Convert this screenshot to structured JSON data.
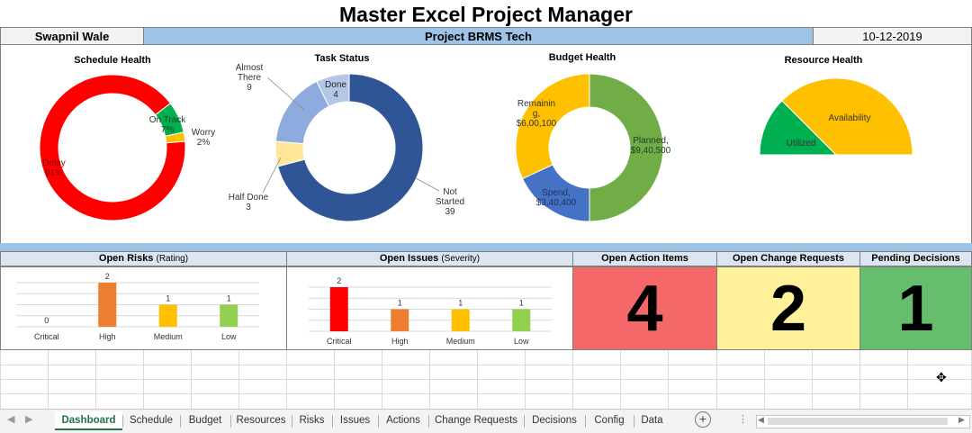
{
  "title": "Master Excel Project Manager",
  "header": {
    "owner": "Swapnil Wale",
    "project": "Project BRMS Tech",
    "date": "10-12-2019"
  },
  "charts": {
    "schedule_title": "Schedule Health",
    "task_title": "Task Status",
    "budget_title": "Budget Health",
    "resource_title": "Resource Health"
  },
  "chart_data": [
    {
      "type": "pie",
      "title": "Schedule Health",
      "labels": [
        "Delay",
        "On Track",
        "Worry"
      ],
      "values": [
        91,
        7,
        2
      ],
      "display": {
        "delay_name": "Delay",
        "delay_pct": "91%",
        "ontrack_name": "On Track",
        "ontrack_pct": "7%",
        "worry_name": "Worry",
        "worry_pct": "2%"
      },
      "colors": [
        "#ff0000",
        "#00b050",
        "#ffc000"
      ]
    },
    {
      "type": "pie",
      "title": "Task Status",
      "labels": [
        "Not Started",
        "Half Done",
        "Almost There",
        "Done"
      ],
      "values": [
        39,
        3,
        9,
        4
      ],
      "display": {
        "ns_name1": "Not",
        "ns_name2": "Started",
        "ns_val": "39",
        "hd_name": "Half Done",
        "hd_val": "3",
        "at_name1": "Almost",
        "at_name2": "There",
        "at_val": "9",
        "done_name": "Done",
        "done_val": "4"
      },
      "colors": [
        "#2f5597",
        "#ffe699",
        "#8faadc",
        "#b4c7e7"
      ]
    },
    {
      "type": "pie",
      "title": "Budget Health",
      "labels": [
        "Planned",
        "Spend",
        "Remaining"
      ],
      "values": [
        940500,
        340400,
        600100
      ],
      "display": {
        "planned_name": "Planned,",
        "planned_val": "$9,40,500",
        "spend_name": "Spend,",
        "spend_val": "$3,40,400",
        "rem_name1": "Remainin",
        "rem_name2": "g,",
        "rem_val": "$6,00,100"
      },
      "colors": [
        "#70ad47",
        "#4472c4",
        "#ffc000"
      ]
    },
    {
      "type": "pie",
      "title": "Resource Health",
      "labels": [
        "Utilized",
        "Availability"
      ],
      "values": [
        25,
        75
      ],
      "display": {
        "utilized": "Utilized",
        "availability": "Availability"
      },
      "colors": [
        "#00b050",
        "#ffc000"
      ]
    },
    {
      "type": "bar",
      "title": "Open Risks (Rating)",
      "categories": [
        "Critical",
        "High",
        "Medium",
        "Low"
      ],
      "values": [
        0,
        2,
        1,
        1
      ],
      "ylim": [
        0,
        2
      ],
      "colors": [
        "#ff0000",
        "#ed7d31",
        "#ffc000",
        "#92d050"
      ]
    },
    {
      "type": "bar",
      "title": "Open Issues (Severity)",
      "categories": [
        "Critical",
        "High",
        "Medium",
        "Low"
      ],
      "values": [
        2,
        1,
        1,
        1
      ],
      "ylim": [
        0,
        2
      ],
      "colors": [
        "#ff0000",
        "#ed7d31",
        "#ffc000",
        "#92d050"
      ]
    }
  ],
  "sections": {
    "risks": "Open Risks",
    "risks_sub": "(Rating)",
    "issues": "Open Issues",
    "issues_sub": "(Severity)",
    "actions": "Open Action Items",
    "changes": "Open Change Requests",
    "decisions": "Pending Decisions"
  },
  "counts": {
    "actions": "4",
    "changes": "2",
    "decisions": "1"
  },
  "count_colors": {
    "actions": "#f4686a",
    "changes": "#fff09a",
    "decisions": "#66bd6e"
  },
  "tabs": [
    "Dashboard",
    "Schedule",
    "Budget",
    "Resources",
    "Risks",
    "Issues",
    "Actions",
    "Change Requests",
    "Decisions",
    "Config",
    "Data"
  ],
  "active_tab": "Dashboard"
}
